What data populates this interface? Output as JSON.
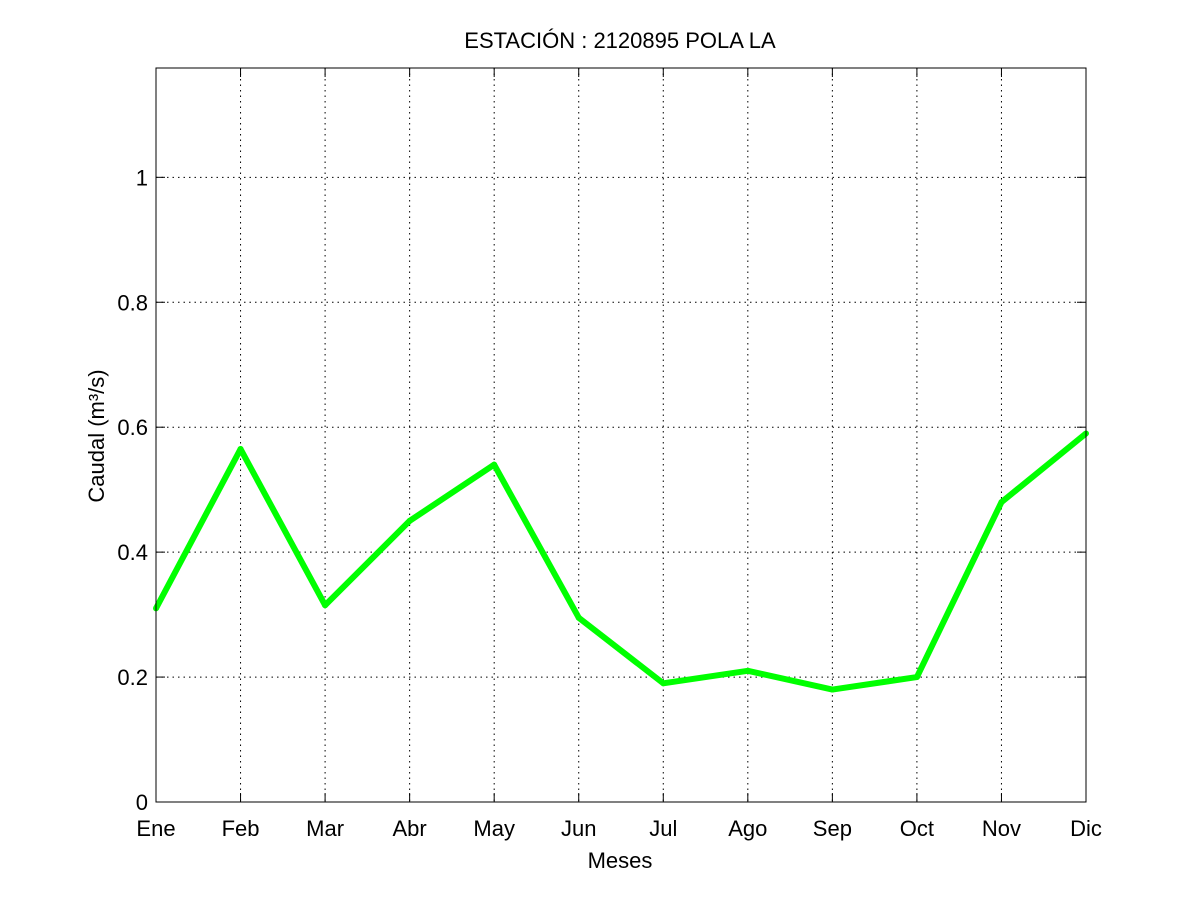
{
  "chart_data": {
    "type": "line",
    "title": "ESTACIÓN :  2120895  POLA LA",
    "xlabel": "Meses",
    "ylabel": "Caudal (m³/s)",
    "categories": [
      "Ene",
      "Feb",
      "Mar",
      "Abr",
      "May",
      "Jun",
      "Jul",
      "Ago",
      "Sep",
      "Oct",
      "Nov",
      "Dic"
    ],
    "series": [
      {
        "values": [
          0.31,
          0.565,
          0.315,
          0.45,
          0.54,
          0.295,
          0.19,
          0.21,
          0.18,
          0.2,
          0.48,
          0.59
        ],
        "color": "#00ff00"
      }
    ],
    "ylim": [
      0,
      1.175
    ],
    "yticks": [
      0,
      0.2,
      0.4,
      0.6,
      0.8,
      1
    ],
    "ytick_labels": [
      "0",
      "0.2",
      "0.4",
      "0.6",
      "0.8",
      "1"
    ],
    "grid": true
  }
}
